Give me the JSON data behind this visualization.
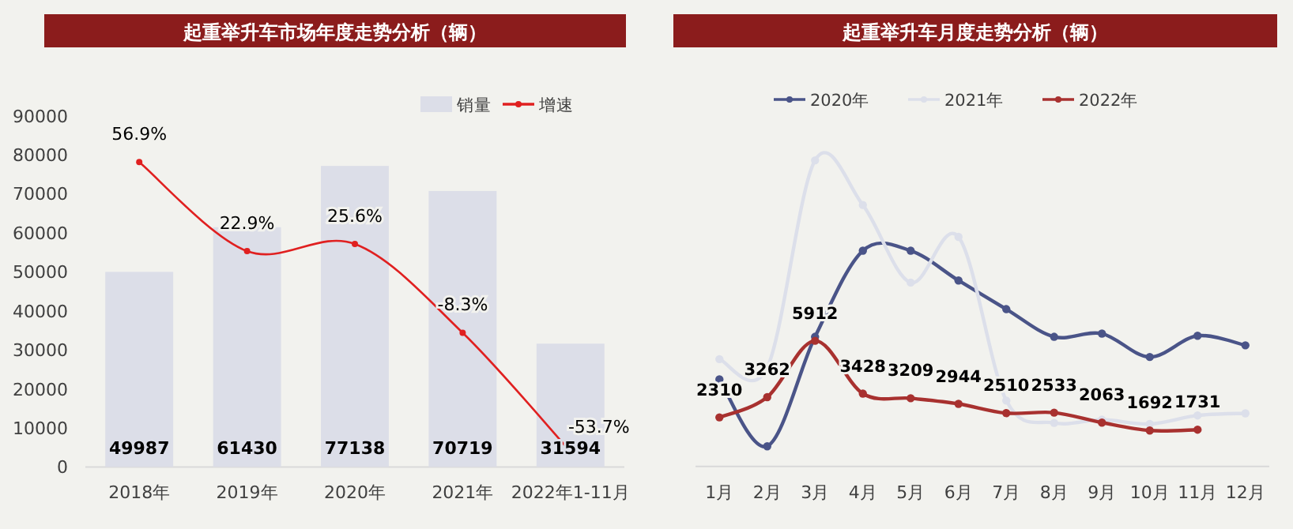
{
  "chart_data": [
    {
      "type": "bar",
      "title": "起重举升车市场年度走势分析（辆）",
      "categories": [
        "2018年",
        "2019年",
        "2020年",
        "2021年",
        "2022年1-11月"
      ],
      "series": [
        {
          "name": "销量",
          "type": "bar",
          "color": "#dcdee8",
          "values": [
            49987,
            61430,
            77138,
            70719,
            31594
          ],
          "value_labels": [
            "49987",
            "61430",
            "77138",
            "70719",
            "31594"
          ]
        },
        {
          "name": "增速",
          "type": "line",
          "axis": "y2",
          "color": "#e02020",
          "values": [
            56.9,
            22.9,
            25.6,
            -8.3,
            -53.7
          ],
          "value_labels": [
            "56.9%",
            "22.9%",
            "25.6%",
            "-8.3%",
            "-53.7%"
          ]
        }
      ],
      "ylim": [
        0,
        90000
      ],
      "yticks": [
        0,
        10000,
        20000,
        30000,
        40000,
        50000,
        60000,
        70000,
        80000,
        90000
      ],
      "legend": "top right",
      "marker": "circle",
      "grid": false
    },
    {
      "type": "line",
      "title": "起重举升车月度走势分析（辆）",
      "categories": [
        "1月",
        "2月",
        "3月",
        "4月",
        "5月",
        "6月",
        "7月",
        "8月",
        "9月",
        "10月",
        "11月",
        "12月"
      ],
      "series": [
        {
          "name": "2020年",
          "color": "#4a5488",
          "values": [
            4100,
            950,
            6100,
            10150,
            10150,
            8750,
            7400,
            6100,
            6250,
            5150,
            6150,
            5700
          ]
        },
        {
          "name": "2021年",
          "color": "#dcdfea",
          "values": [
            5050,
            4650,
            14400,
            12300,
            8650,
            10800,
            3100,
            2050,
            2200,
            2000,
            2400,
            2500
          ]
        },
        {
          "name": "2022年",
          "color": "#a8312f",
          "values": [
            2310,
            3262,
            5912,
            3428,
            3209,
            2944,
            2510,
            2533,
            2063,
            1692,
            1731,
            null
          ],
          "value_labels": [
            "2310",
            "3262",
            "5912",
            "3428",
            "3209",
            "2944",
            "2510",
            "2533",
            "2063",
            "1692",
            "1731",
            null
          ]
        }
      ],
      "tick_labels": "x",
      "legend": "top",
      "marker": "circle",
      "grid": false
    }
  ]
}
